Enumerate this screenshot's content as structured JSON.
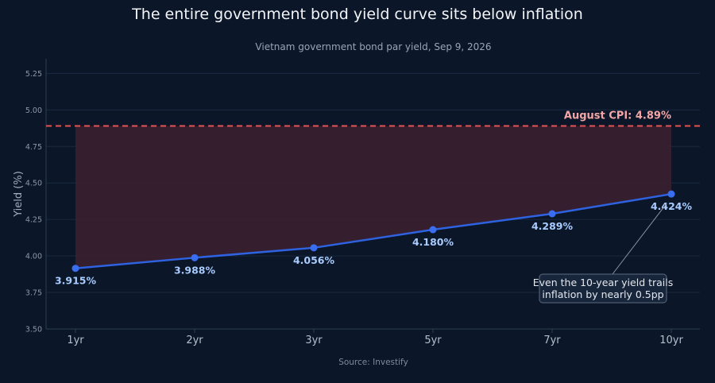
{
  "chart_data": {
    "type": "line",
    "title": "The entire government bond yield curve sits below inflation",
    "subtitle": "Vietnam government bond par yield, Sep 9, 2026",
    "xlabel": "",
    "ylabel": "Yield (%)",
    "source": "Source: Investify",
    "categories": [
      "1yr",
      "2yr",
      "3yr",
      "5yr",
      "7yr",
      "10yr"
    ],
    "values": [
      3.915,
      3.988,
      4.056,
      4.18,
      4.289,
      4.424
    ],
    "value_labels": [
      "3.915%",
      "3.988%",
      "4.056%",
      "4.180%",
      "4.289%",
      "4.424%"
    ],
    "ylim": [
      3.5,
      5.35
    ],
    "yticks": [
      3.5,
      3.75,
      4.0,
      4.25,
      4.5,
      4.75,
      5.0,
      5.25
    ],
    "ytick_labels": [
      "3.50",
      "3.75",
      "4.00",
      "4.25",
      "4.50",
      "4.75",
      "5.00",
      "5.25"
    ],
    "grid": true,
    "reference_line": {
      "value": 4.89,
      "label": "August CPI: 4.89%",
      "color": "#e05555"
    },
    "annotation": {
      "lines": [
        "Even the 10-year yield trails",
        "inflation by nearly 0.5pp"
      ],
      "target_category": "10yr"
    },
    "colors": {
      "line": "#2f62e0",
      "marker": "#3a6ef0",
      "gap_fill": "#3a2030",
      "grid": "#1b2a40",
      "axis": "#2e3d55"
    }
  }
}
